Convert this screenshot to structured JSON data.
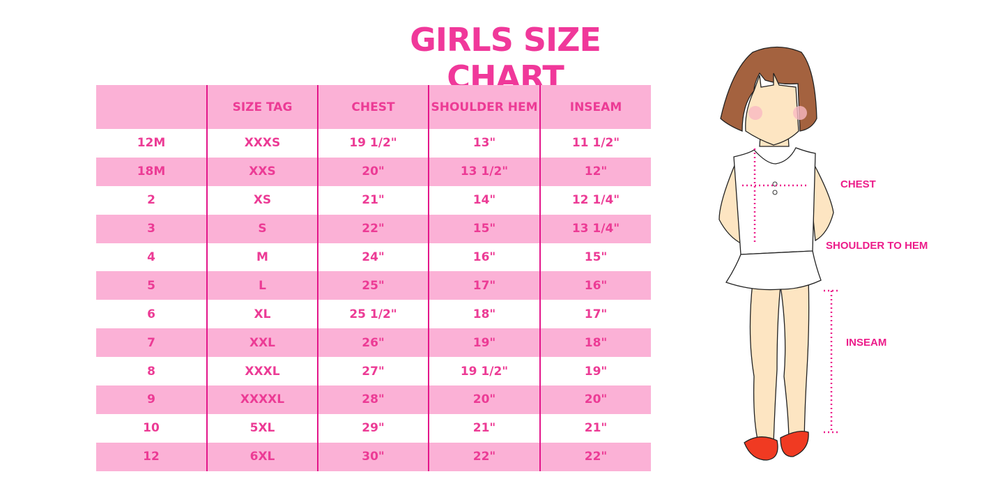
{
  "title": "GIRLS SIZE CHART",
  "colors": {
    "accent": "#f0389a",
    "row_pink": "#fbb1d6",
    "divider": "#e3158a"
  },
  "table": {
    "headers": [
      "",
      "SIZE TAG",
      "CHEST",
      "SHOULDER HEM",
      "INSEAM"
    ],
    "rows": [
      [
        "12M",
        "XXXS",
        "19 1/2\"",
        "13\"",
        "11 1/2\""
      ],
      [
        "18M",
        "XXS",
        "20\"",
        "13 1/2\"",
        "12\""
      ],
      [
        "2",
        "XS",
        "21\"",
        "14\"",
        "12 1/4\""
      ],
      [
        "3",
        "S",
        "22\"",
        "15\"",
        "13 1/4\""
      ],
      [
        "4",
        "M",
        "24\"",
        "16\"",
        "15\""
      ],
      [
        "5",
        "L",
        "25\"",
        "17\"",
        "16\""
      ],
      [
        "6",
        "XL",
        "25 1/2\"",
        "18\"",
        "17\""
      ],
      [
        "7",
        "XXL",
        "26\"",
        "19\"",
        "18\""
      ],
      [
        "8",
        "XXXL",
        "27\"",
        "19 1/2\"",
        "19\""
      ],
      [
        "9",
        "XXXXL",
        "28\"",
        "20\"",
        "20\""
      ],
      [
        "10",
        "5XL",
        "29\"",
        "21\"",
        "21\""
      ],
      [
        "12",
        "6XL",
        "30\"",
        "22\"",
        "22\""
      ]
    ]
  },
  "figure": {
    "labels": {
      "chest": "CHEST",
      "shoulder": "SHOULDER TO HEM",
      "inseam": "INSEAM"
    }
  }
}
